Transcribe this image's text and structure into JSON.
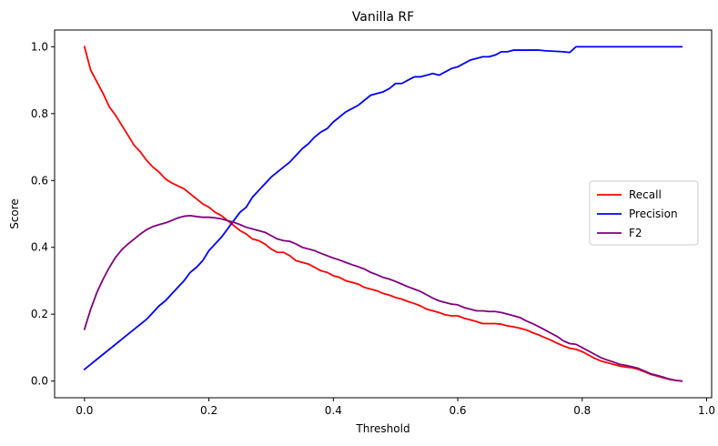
{
  "chart_data": {
    "type": "line",
    "title": "Vanilla RF",
    "xlabel": "Threshold",
    "ylabel": "Score",
    "xlim": [
      -0.048,
      1.008
    ],
    "ylim": [
      -0.05,
      1.05
    ],
    "xticks": [
      0.0,
      0.2,
      0.4,
      0.6,
      0.8,
      1.0
    ],
    "xtick_labels": [
      "0.0",
      "0.2",
      "0.4",
      "0.6",
      "0.8",
      "1.0"
    ],
    "yticks": [
      0.0,
      0.2,
      0.4,
      0.6,
      0.8,
      1.0
    ],
    "ytick_labels": [
      "0.0",
      "0.2",
      "0.4",
      "0.6",
      "0.8",
      "1.0"
    ],
    "grid": false,
    "legend_position": "center-right",
    "x": [
      0.0,
      0.01,
      0.02,
      0.03,
      0.04,
      0.05,
      0.06,
      0.07,
      0.08,
      0.09,
      0.1,
      0.11,
      0.12,
      0.13,
      0.14,
      0.15,
      0.16,
      0.17,
      0.18,
      0.19,
      0.2,
      0.21,
      0.22,
      0.23,
      0.24,
      0.25,
      0.26,
      0.27,
      0.28,
      0.29,
      0.3,
      0.31,
      0.32,
      0.33,
      0.34,
      0.35,
      0.36,
      0.37,
      0.38,
      0.39,
      0.4,
      0.41,
      0.42,
      0.43,
      0.44,
      0.45,
      0.46,
      0.47,
      0.48,
      0.49,
      0.5,
      0.51,
      0.52,
      0.53,
      0.54,
      0.55,
      0.56,
      0.57,
      0.58,
      0.59,
      0.6,
      0.61,
      0.62,
      0.63,
      0.64,
      0.65,
      0.66,
      0.67,
      0.68,
      0.69,
      0.7,
      0.71,
      0.72,
      0.73,
      0.74,
      0.75,
      0.76,
      0.77,
      0.78,
      0.79,
      0.8,
      0.81,
      0.82,
      0.83,
      0.84,
      0.85,
      0.86,
      0.87,
      0.88,
      0.89,
      0.9,
      0.91,
      0.92,
      0.93,
      0.94,
      0.95,
      0.96
    ],
    "series": [
      {
        "name": "Recall",
        "color": "#ff0000",
        "values": [
          1.0,
          0.93,
          0.895,
          0.86,
          0.82,
          0.795,
          0.765,
          0.735,
          0.705,
          0.685,
          0.66,
          0.64,
          0.625,
          0.605,
          0.593,
          0.584,
          0.575,
          0.56,
          0.545,
          0.53,
          0.52,
          0.505,
          0.495,
          0.48,
          0.465,
          0.45,
          0.44,
          0.425,
          0.42,
          0.41,
          0.395,
          0.385,
          0.385,
          0.375,
          0.36,
          0.355,
          0.35,
          0.34,
          0.33,
          0.325,
          0.315,
          0.31,
          0.3,
          0.295,
          0.29,
          0.28,
          0.275,
          0.27,
          0.262,
          0.257,
          0.25,
          0.245,
          0.238,
          0.232,
          0.225,
          0.215,
          0.21,
          0.205,
          0.198,
          0.195,
          0.195,
          0.188,
          0.183,
          0.178,
          0.172,
          0.172,
          0.172,
          0.17,
          0.165,
          0.162,
          0.158,
          0.153,
          0.145,
          0.138,
          0.13,
          0.122,
          0.113,
          0.105,
          0.098,
          0.095,
          0.088,
          0.078,
          0.068,
          0.06,
          0.055,
          0.05,
          0.045,
          0.042,
          0.04,
          0.035,
          0.028,
          0.02,
          0.015,
          0.01,
          0.005,
          0.002,
          0.0
        ]
      },
      {
        "name": "Precision",
        "color": "#0000ff",
        "values": [
          0.035,
          0.05,
          0.065,
          0.08,
          0.095,
          0.11,
          0.125,
          0.14,
          0.155,
          0.17,
          0.185,
          0.205,
          0.225,
          0.24,
          0.26,
          0.28,
          0.3,
          0.325,
          0.34,
          0.36,
          0.39,
          0.41,
          0.43,
          0.455,
          0.48,
          0.505,
          0.52,
          0.55,
          0.57,
          0.59,
          0.61,
          0.625,
          0.64,
          0.655,
          0.675,
          0.695,
          0.71,
          0.73,
          0.745,
          0.755,
          0.775,
          0.79,
          0.805,
          0.815,
          0.825,
          0.84,
          0.855,
          0.86,
          0.865,
          0.875,
          0.89,
          0.89,
          0.9,
          0.91,
          0.91,
          0.915,
          0.92,
          0.915,
          0.925,
          0.935,
          0.94,
          0.95,
          0.96,
          0.965,
          0.97,
          0.97,
          0.975,
          0.985,
          0.985,
          0.99,
          0.99,
          0.99,
          0.99,
          0.99,
          0.988,
          0.987,
          0.986,
          0.985,
          0.983,
          1.0,
          1.0,
          1.0,
          1.0,
          1.0,
          1.0,
          1.0,
          1.0,
          1.0,
          1.0,
          1.0,
          1.0,
          1.0,
          1.0,
          1.0,
          1.0,
          1.0,
          1.0
        ]
      },
      {
        "name": "F2",
        "color": "#800080",
        "values": [
          0.155,
          0.215,
          0.265,
          0.305,
          0.34,
          0.37,
          0.393,
          0.41,
          0.425,
          0.44,
          0.453,
          0.462,
          0.468,
          0.473,
          0.48,
          0.488,
          0.493,
          0.495,
          0.492,
          0.49,
          0.49,
          0.488,
          0.485,
          0.48,
          0.475,
          0.468,
          0.46,
          0.455,
          0.45,
          0.445,
          0.435,
          0.425,
          0.42,
          0.418,
          0.41,
          0.4,
          0.395,
          0.39,
          0.382,
          0.375,
          0.368,
          0.362,
          0.355,
          0.348,
          0.342,
          0.335,
          0.325,
          0.318,
          0.31,
          0.305,
          0.298,
          0.29,
          0.282,
          0.275,
          0.268,
          0.258,
          0.248,
          0.24,
          0.235,
          0.23,
          0.228,
          0.22,
          0.215,
          0.21,
          0.21,
          0.208,
          0.208,
          0.205,
          0.2,
          0.195,
          0.19,
          0.18,
          0.172,
          0.163,
          0.153,
          0.143,
          0.133,
          0.12,
          0.112,
          0.11,
          0.1,
          0.09,
          0.08,
          0.07,
          0.063,
          0.057,
          0.05,
          0.047,
          0.043,
          0.038,
          0.03,
          0.022,
          0.017,
          0.012,
          0.006,
          0.002,
          0.0
        ]
      }
    ]
  }
}
